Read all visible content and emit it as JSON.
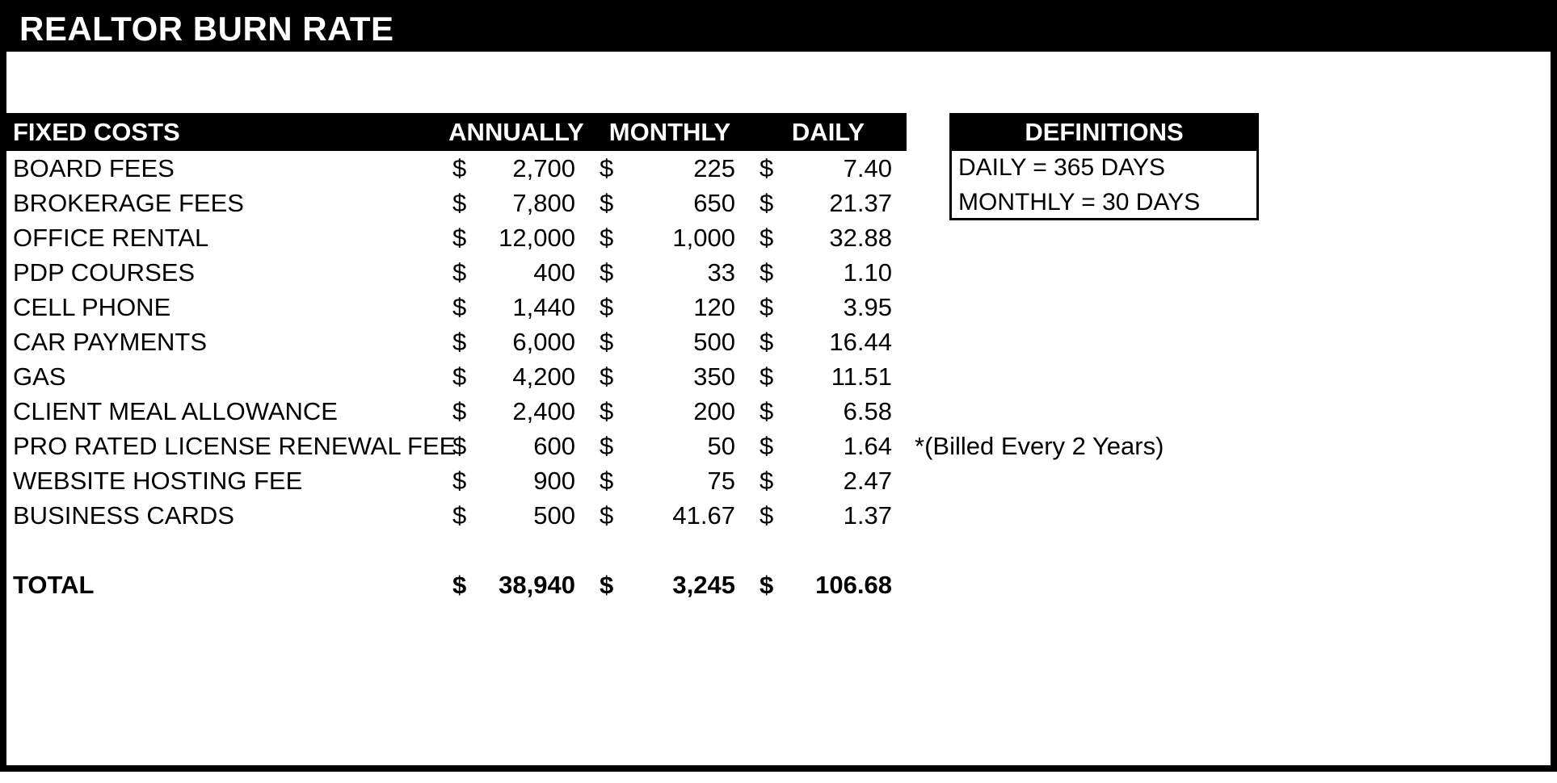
{
  "title": "REALTOR BURN RATE",
  "table": {
    "currency_symbol": "$",
    "header": {
      "label": "FIXED COSTS",
      "columns": [
        "ANNUALLY",
        "MONTHLY",
        "DAILY"
      ]
    },
    "rows": [
      {
        "label": "BOARD FEES",
        "annually": "2,700",
        "monthly": "225",
        "daily": "7.40"
      },
      {
        "label": "BROKERAGE FEES",
        "annually": "7,800",
        "monthly": "650",
        "daily": "21.37"
      },
      {
        "label": "OFFICE RENTAL",
        "annually": "12,000",
        "monthly": "1,000",
        "daily": "32.88"
      },
      {
        "label": "PDP COURSES",
        "annually": "400",
        "monthly": "33",
        "daily": "1.10"
      },
      {
        "label": "CELL PHONE",
        "annually": "1,440",
        "monthly": "120",
        "daily": "3.95"
      },
      {
        "label": "CAR PAYMENTS",
        "annually": "6,000",
        "monthly": "500",
        "daily": "16.44"
      },
      {
        "label": "GAS",
        "annually": "4,200",
        "monthly": "350",
        "daily": "11.51"
      },
      {
        "label": "CLIENT MEAL ALLOWANCE",
        "annually": "2,400",
        "monthly": "200",
        "daily": "6.58"
      },
      {
        "label": "PRO RATED LICENSE RENEWAL FEE",
        "annually": "600",
        "monthly": "50",
        "daily": "1.64",
        "note": "*(Billed Every 2 Years)"
      },
      {
        "label": "WEBSITE HOSTING FEE",
        "annually": "900",
        "monthly": "75",
        "daily": "2.47"
      },
      {
        "label": "BUSINESS CARDS",
        "annually": "500",
        "monthly": "41.67",
        "daily": "1.37"
      }
    ],
    "total": {
      "label": "TOTAL",
      "annually": "38,940",
      "monthly": "3,245",
      "daily": "106.68"
    }
  },
  "definitions": {
    "header": "DEFINITIONS",
    "items": [
      "DAILY = 365 DAYS",
      "MONTHLY = 30 DAYS"
    ]
  },
  "colors": {
    "header_bg": "#000000",
    "header_text": "#ffffff",
    "text": "#000000",
    "background": "#ffffff"
  }
}
